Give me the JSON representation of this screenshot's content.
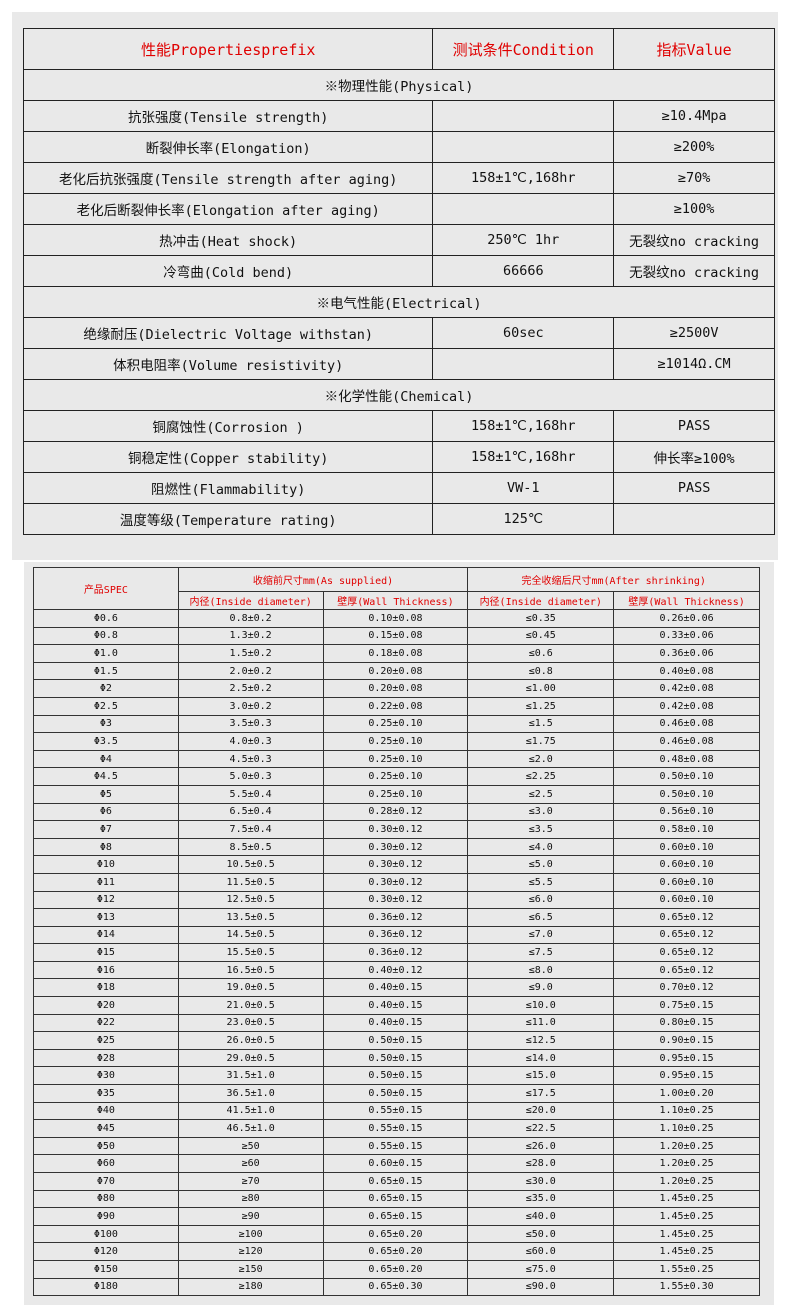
{
  "properties": {
    "headers": [
      "性能Propertiesprefix",
      "测试条件Condition",
      "指标Value"
    ],
    "sections": [
      {
        "title": "※物理性能(Physical)",
        "rows": [
          [
            "抗张强度(Tensile strength)",
            "",
            "≥10.4Mpa"
          ],
          [
            "断裂伸长率(Elongation)",
            "",
            "≥200%"
          ],
          [
            "老化后抗张强度(Tensile strength after aging)",
            "158±1℃,168hr",
            "≥70%"
          ],
          [
            "老化后断裂伸长率(Elongation after aging)",
            "",
            "≥100%"
          ],
          [
            "热冲击(Heat shock)",
            "250℃ 1hr",
            "无裂纹no cracking"
          ],
          [
            "冷弯曲(Cold bend)",
            "66666",
            "无裂纹no cracking"
          ]
        ]
      },
      {
        "title": "※电气性能(Electrical)",
        "rows": [
          [
            "绝缘耐压(Dielectric Voltage withstan)",
            "60sec",
            "≥2500V"
          ],
          [
            "体积电阻率(Volume resistivity)",
            "",
            "≥1014Ω.CM"
          ]
        ]
      },
      {
        "title": "※化学性能(Chemical)",
        "rows": [
          [
            "铜腐蚀性(Corrosion )",
            "158±1℃,168hr",
            "PASS"
          ],
          [
            "铜稳定性(Copper stability)",
            "158±1℃,168hr",
            "伸长率≥100%"
          ],
          [
            "阻燃性(Flammability)",
            "VW-1",
            "PASS"
          ],
          [
            "温度等级(Temperature rating)",
            "125℃",
            ""
          ]
        ]
      }
    ]
  },
  "spec": {
    "spec_header": "产品SPEC",
    "as_supplied": "收缩前尺寸mm(As supplied)",
    "after_shrinking": "完全收缩后尺寸mm(After shrinking)",
    "sub": [
      "内径(Inside diameter)",
      "壁厚(Wall Thickness)",
      "内径(Inside diameter)",
      "壁厚(Wall Thickness)"
    ],
    "rows": [
      [
        "Φ0.6",
        "0.8±0.2",
        "0.10±0.08",
        "≤0.35",
        "0.26±0.06"
      ],
      [
        "Φ0.8",
        "1.3±0.2",
        "0.15±0.08",
        "≤0.45",
        "0.33±0.06"
      ],
      [
        "Φ1.0",
        "1.5±0.2",
        "0.18±0.08",
        "≤0.6",
        "0.36±0.06"
      ],
      [
        "Φ1.5",
        "2.0±0.2",
        "0.20±0.08",
        "≤0.8",
        "0.40±0.08"
      ],
      [
        "Φ2",
        "2.5±0.2",
        "0.20±0.08",
        "≤1.00",
        "0.42±0.08"
      ],
      [
        "Φ2.5",
        "3.0±0.2",
        "0.22±0.08",
        "≤1.25",
        "0.42±0.08"
      ],
      [
        "Φ3",
        "3.5±0.3",
        "0.25±0.10",
        "≤1.5",
        "0.46±0.08"
      ],
      [
        "Φ3.5",
        "4.0±0.3",
        "0.25±0.10",
        "≤1.75",
        "0.46±0.08"
      ],
      [
        "Φ4",
        "4.5±0.3",
        "0.25±0.10",
        "≤2.0",
        "0.48±0.08"
      ],
      [
        "Φ4.5",
        "5.0±0.3",
        "0.25±0.10",
        "≤2.25",
        "0.50±0.10"
      ],
      [
        "Φ5",
        "5.5±0.4",
        "0.25±0.10",
        "≤2.5",
        "0.50±0.10"
      ],
      [
        "Φ6",
        "6.5±0.4",
        "0.28±0.12",
        "≤3.0",
        "0.56±0.10"
      ],
      [
        "Φ7",
        "7.5±0.4",
        "0.30±0.12",
        "≤3.5",
        "0.58±0.10"
      ],
      [
        "Φ8",
        "8.5±0.5",
        "0.30±0.12",
        "≤4.0",
        "0.60±0.10"
      ],
      [
        "Φ10",
        "10.5±0.5",
        "0.30±0.12",
        "≤5.0",
        "0.60±0.10"
      ],
      [
        "Φ11",
        "11.5±0.5",
        "0.30±0.12",
        "≤5.5",
        "0.60±0.10"
      ],
      [
        "Φ12",
        "12.5±0.5",
        "0.30±0.12",
        "≤6.0",
        "0.60±0.10"
      ],
      [
        "Φ13",
        "13.5±0.5",
        "0.36±0.12",
        "≤6.5",
        "0.65±0.12"
      ],
      [
        "Φ14",
        "14.5±0.5",
        "0.36±0.12",
        "≤7.0",
        "0.65±0.12"
      ],
      [
        "Φ15",
        "15.5±0.5",
        "0.36±0.12",
        "≤7.5",
        "0.65±0.12"
      ],
      [
        "Φ16",
        "16.5±0.5",
        "0.40±0.12",
        "≤8.0",
        "0.65±0.12"
      ],
      [
        "Φ18",
        "19.0±0.5",
        "0.40±0.15",
        "≤9.0",
        "0.70±0.12"
      ],
      [
        "Φ20",
        "21.0±0.5",
        "0.40±0.15",
        "≤10.0",
        "0.75±0.15"
      ],
      [
        "Φ22",
        "23.0±0.5",
        "0.40±0.15",
        "≤11.0",
        "0.80±0.15"
      ],
      [
        "Φ25",
        "26.0±0.5",
        "0.50±0.15",
        "≤12.5",
        "0.90±0.15"
      ],
      [
        "Φ28",
        "29.0±0.5",
        "0.50±0.15",
        "≤14.0",
        "0.95±0.15"
      ],
      [
        "Φ30",
        "31.5±1.0",
        "0.50±0.15",
        "≤15.0",
        "0.95±0.15"
      ],
      [
        "Φ35",
        "36.5±1.0",
        "0.50±0.15",
        "≤17.5",
        "1.00±0.20"
      ],
      [
        "Φ40",
        "41.5±1.0",
        "0.55±0.15",
        "≤20.0",
        "1.10±0.25"
      ],
      [
        "Φ45",
        "46.5±1.0",
        "0.55±0.15",
        "≤22.5",
        "1.10±0.25"
      ],
      [
        "Φ50",
        "≥50",
        "0.55±0.15",
        "≤26.0",
        "1.20±0.25"
      ],
      [
        "Φ60",
        "≥60",
        "0.60±0.15",
        "≤28.0",
        "1.20±0.25"
      ],
      [
        "Φ70",
        "≥70",
        "0.65±0.15",
        "≤30.0",
        "1.20±0.25"
      ],
      [
        "Φ80",
        "≥80",
        "0.65±0.15",
        "≤35.0",
        "1.45±0.25"
      ],
      [
        "Φ90",
        "≥90",
        "0.65±0.15",
        "≤40.0",
        "1.45±0.25"
      ],
      [
        "Φ100",
        "≥100",
        "0.65±0.20",
        "≤50.0",
        "1.45±0.25"
      ],
      [
        "Φ120",
        "≥120",
        "0.65±0.20",
        "≤60.0",
        "1.45±0.25"
      ],
      [
        "Φ150",
        "≥150",
        "0.65±0.20",
        "≤75.0",
        "1.55±0.25"
      ],
      [
        "Φ180",
        "≥180",
        "0.65±0.30",
        "≤90.0",
        "1.55±0.30"
      ]
    ]
  }
}
